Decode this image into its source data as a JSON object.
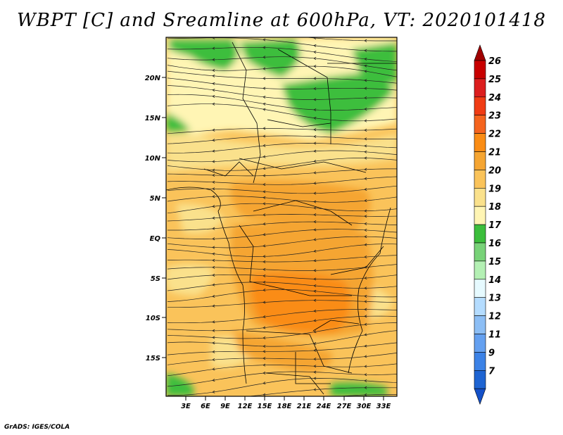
{
  "title": "WBPT [C] and Sreamline at 600hPa, VT: 2020101418",
  "footer": "GrADS: IGES/COLA",
  "lat_ticks": [
    "20N",
    "15N",
    "10N",
    "5N",
    "EQ",
    "5S",
    "10S",
    "15S"
  ],
  "lon_ticks": [
    "3E",
    "6E",
    "9E",
    "12E",
    "15E",
    "18E",
    "21E",
    "24E",
    "27E",
    "30E",
    "33E"
  ],
  "colorbar": {
    "labels": [
      "26",
      "25",
      "24",
      "23",
      "22",
      "21",
      "20",
      "19",
      "18",
      "17",
      "16",
      "15",
      "14",
      "13",
      "12",
      "11",
      "9",
      "7"
    ],
    "colors": [
      "#c80000",
      "#dc1e1e",
      "#f03c14",
      "#f5641e",
      "#fa8c14",
      "#f5a532",
      "#fac35a",
      "#fae18c",
      "#fff5b4",
      "#3cbe3c",
      "#78d278",
      "#b4f0b4",
      "#e6faff",
      "#b4dcff",
      "#8cbef5",
      "#64a0f0",
      "#3c82e6",
      "#1e64d2"
    ],
    "top_arrow_color": "#a00000",
    "bottom_arrow_color": "#1450c8"
  },
  "map": {
    "field_colors": {
      "t17": "#3cbe3c",
      "t18": "#fff5b4",
      "t19": "#fae18c",
      "t20": "#fac35a",
      "t21": "#f5a532",
      "t22": "#fa8c14"
    },
    "boundary_color": "#000000",
    "streamline_color": "#222222"
  }
}
